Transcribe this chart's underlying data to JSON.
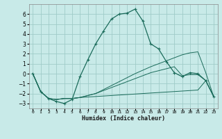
{
  "background_color": "#c8eae8",
  "grid_color": "#a0ccc8",
  "line_color": "#1a6b5a",
  "xlabel": "Humidex (Indice chaleur)",
  "xlim": [
    -0.5,
    23.5
  ],
  "ylim": [
    -3.5,
    7.0
  ],
  "yticks": [
    -3,
    -2,
    -1,
    0,
    1,
    2,
    3,
    4,
    5,
    6
  ],
  "xtick_labels": [
    "0",
    "1",
    "2",
    "3",
    "4",
    "5",
    "6",
    "7",
    "8",
    "9",
    "10",
    "11",
    "12",
    "13",
    "14",
    "15",
    "16",
    "17",
    "18",
    "19",
    "20",
    "21",
    "22",
    "23"
  ],
  "series_main": [
    0.0,
    -1.8,
    -2.5,
    -2.8,
    -3.0,
    -2.6,
    -0.3,
    1.4,
    3.0,
    4.3,
    5.5,
    6.0,
    6.1,
    6.5,
    5.3,
    3.0,
    2.5,
    1.2,
    0.1,
    -0.3,
    0.1,
    0.0,
    -0.7,
    -2.3
  ],
  "series_flat": [
    0.0,
    -1.8,
    -2.5,
    -2.6,
    -2.5,
    -2.5,
    -2.4,
    -2.35,
    -2.3,
    -2.25,
    -2.2,
    -2.15,
    -2.1,
    -2.05,
    -2.0,
    -1.95,
    -1.9,
    -1.85,
    -1.8,
    -1.75,
    -1.7,
    -1.65,
    -0.7,
    -2.3
  ],
  "series_mid": [
    0.0,
    -1.8,
    -2.5,
    -2.6,
    -2.5,
    -2.5,
    -2.4,
    -2.2,
    -2.0,
    -1.7,
    -1.4,
    -1.1,
    -0.8,
    -0.5,
    -0.2,
    0.1,
    0.3,
    0.5,
    0.7,
    -0.2,
    -0.1,
    -0.1,
    -0.7,
    -2.3
  ],
  "series_rise": [
    0.0,
    -1.8,
    -2.5,
    -2.6,
    -2.5,
    -2.5,
    -2.4,
    -2.2,
    -2.0,
    -1.6,
    -1.2,
    -0.8,
    -0.4,
    0.0,
    0.35,
    0.7,
    1.0,
    1.3,
    1.6,
    1.9,
    2.1,
    2.2,
    0.1,
    -2.3
  ]
}
